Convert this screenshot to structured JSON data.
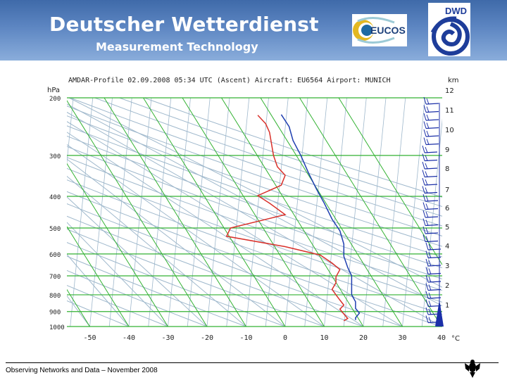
{
  "header": {
    "title": "Deutscher Wetterdienst",
    "subtitle": "Measurement Technology",
    "logo_eucos": "EUCOS",
    "logo_dwd": "DWD"
  },
  "footer": {
    "text": "Observing Networks and Data – November 2008"
  },
  "colors": {
    "header_bg": "#4b76b4",
    "isobar_green": "#33b233",
    "temperature_red": "#d9302a",
    "dewpoint_blue": "#1f3fb0",
    "wind_barbs": "#1b2fa8",
    "background_lines": "#9fb8cc"
  },
  "chart_data": {
    "type": "line",
    "title": "AMDAR-Profile 02.09.2008 05:34 UTC (Ascent) Aircraft: EU6564 Airport: MUNICH",
    "left_axis_label": "hPa",
    "right_axis_label": "km",
    "x_unit": "°C",
    "pressure_ticks": [
      "200",
      "300",
      "400",
      "500",
      "600",
      "700",
      "800",
      "900",
      "1000"
    ],
    "height_ticks": [
      "12",
      "11",
      "10",
      "9",
      "8",
      "7",
      "6",
      "5",
      "4",
      "3",
      "2",
      "1"
    ],
    "x_ticks": [
      "-50",
      "-40",
      "-30",
      "-20",
      "-10",
      "0",
      "10",
      "20",
      "30",
      "40"
    ],
    "xlim": [
      -55,
      42
    ],
    "grid": true,
    "series": [
      {
        "color": "#d9302a",
        "points": [
          [
            -7,
            226
          ],
          [
            -5,
            240
          ],
          [
            -4,
            255
          ],
          [
            -3,
            300
          ],
          [
            -2,
            325
          ],
          [
            0,
            345
          ],
          [
            -1,
            370
          ],
          [
            -7,
            398
          ],
          [
            -4,
            420
          ],
          [
            0,
            455
          ],
          [
            -14,
            500
          ],
          [
            -15,
            530
          ],
          [
            0,
            570
          ],
          [
            9,
            605
          ],
          [
            12,
            640
          ],
          [
            14,
            670
          ],
          [
            13,
            705
          ],
          [
            13,
            735
          ],
          [
            12,
            770
          ],
          [
            13,
            800
          ],
          [
            14,
            830
          ],
          [
            15,
            860
          ],
          [
            14,
            885
          ],
          [
            15,
            915
          ],
          [
            16,
            945
          ],
          [
            15,
            960
          ]
        ]
      },
      {
        "color": "#1f3fb0",
        "points": [
          [
            -1,
            225
          ],
          [
            1,
            245
          ],
          [
            2,
            270
          ],
          [
            4,
            300
          ],
          [
            6,
            340
          ],
          [
            8,
            380
          ],
          [
            10,
            420
          ],
          [
            12,
            470
          ],
          [
            14,
            510
          ],
          [
            15,
            560
          ],
          [
            15,
            610
          ],
          [
            16,
            660
          ],
          [
            17,
            700
          ],
          [
            17,
            740
          ],
          [
            17,
            780
          ],
          [
            17,
            800
          ],
          [
            18,
            840
          ],
          [
            18,
            880
          ],
          [
            19,
            910
          ],
          [
            18,
            940
          ],
          [
            18,
            955
          ]
        ]
      }
    ]
  }
}
